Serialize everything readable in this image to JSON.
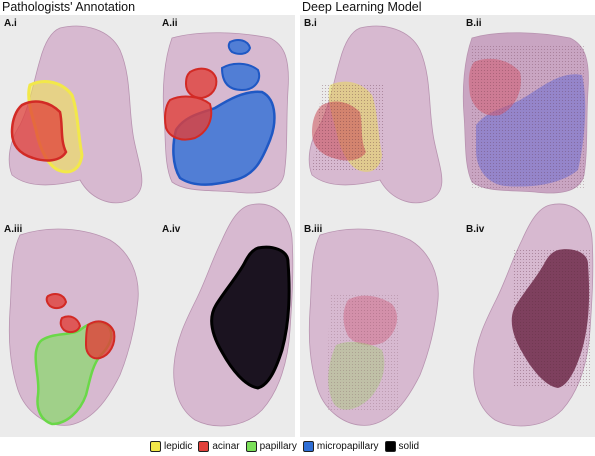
{
  "titles": {
    "left": "Pathologists' Annotation",
    "right": "Deep Learning Model"
  },
  "panels": [
    {
      "id": "A.i",
      "label": "A.i"
    },
    {
      "id": "A.ii",
      "label": "A.ii"
    },
    {
      "id": "A.iii",
      "label": "A.iii"
    },
    {
      "id": "A.iv",
      "label": "A.iv"
    },
    {
      "id": "B.i",
      "label": "B.i"
    },
    {
      "id": "B.ii",
      "label": "B.ii"
    },
    {
      "id": "B.iii",
      "label": "B.iii"
    },
    {
      "id": "B.iv",
      "label": "B.iv"
    }
  ],
  "legend": [
    {
      "label": "lepidic",
      "color": "#f2e84a"
    },
    {
      "label": "acinar",
      "color": "#e0403a"
    },
    {
      "label": "papillary",
      "color": "#7be05a"
    },
    {
      "label": "micropapillary",
      "color": "#2f6fd6"
    },
    {
      "label": "solid",
      "color": "#000000"
    }
  ],
  "colors": {
    "panel_bg": "#ebebeb",
    "tissue": "#cfa7c8",
    "lepidic": "#f2e84a",
    "acinar": "#e0403a",
    "papillary": "#7be05a",
    "micropapillary": "#2f6fd6",
    "solid": "#1b1320"
  }
}
